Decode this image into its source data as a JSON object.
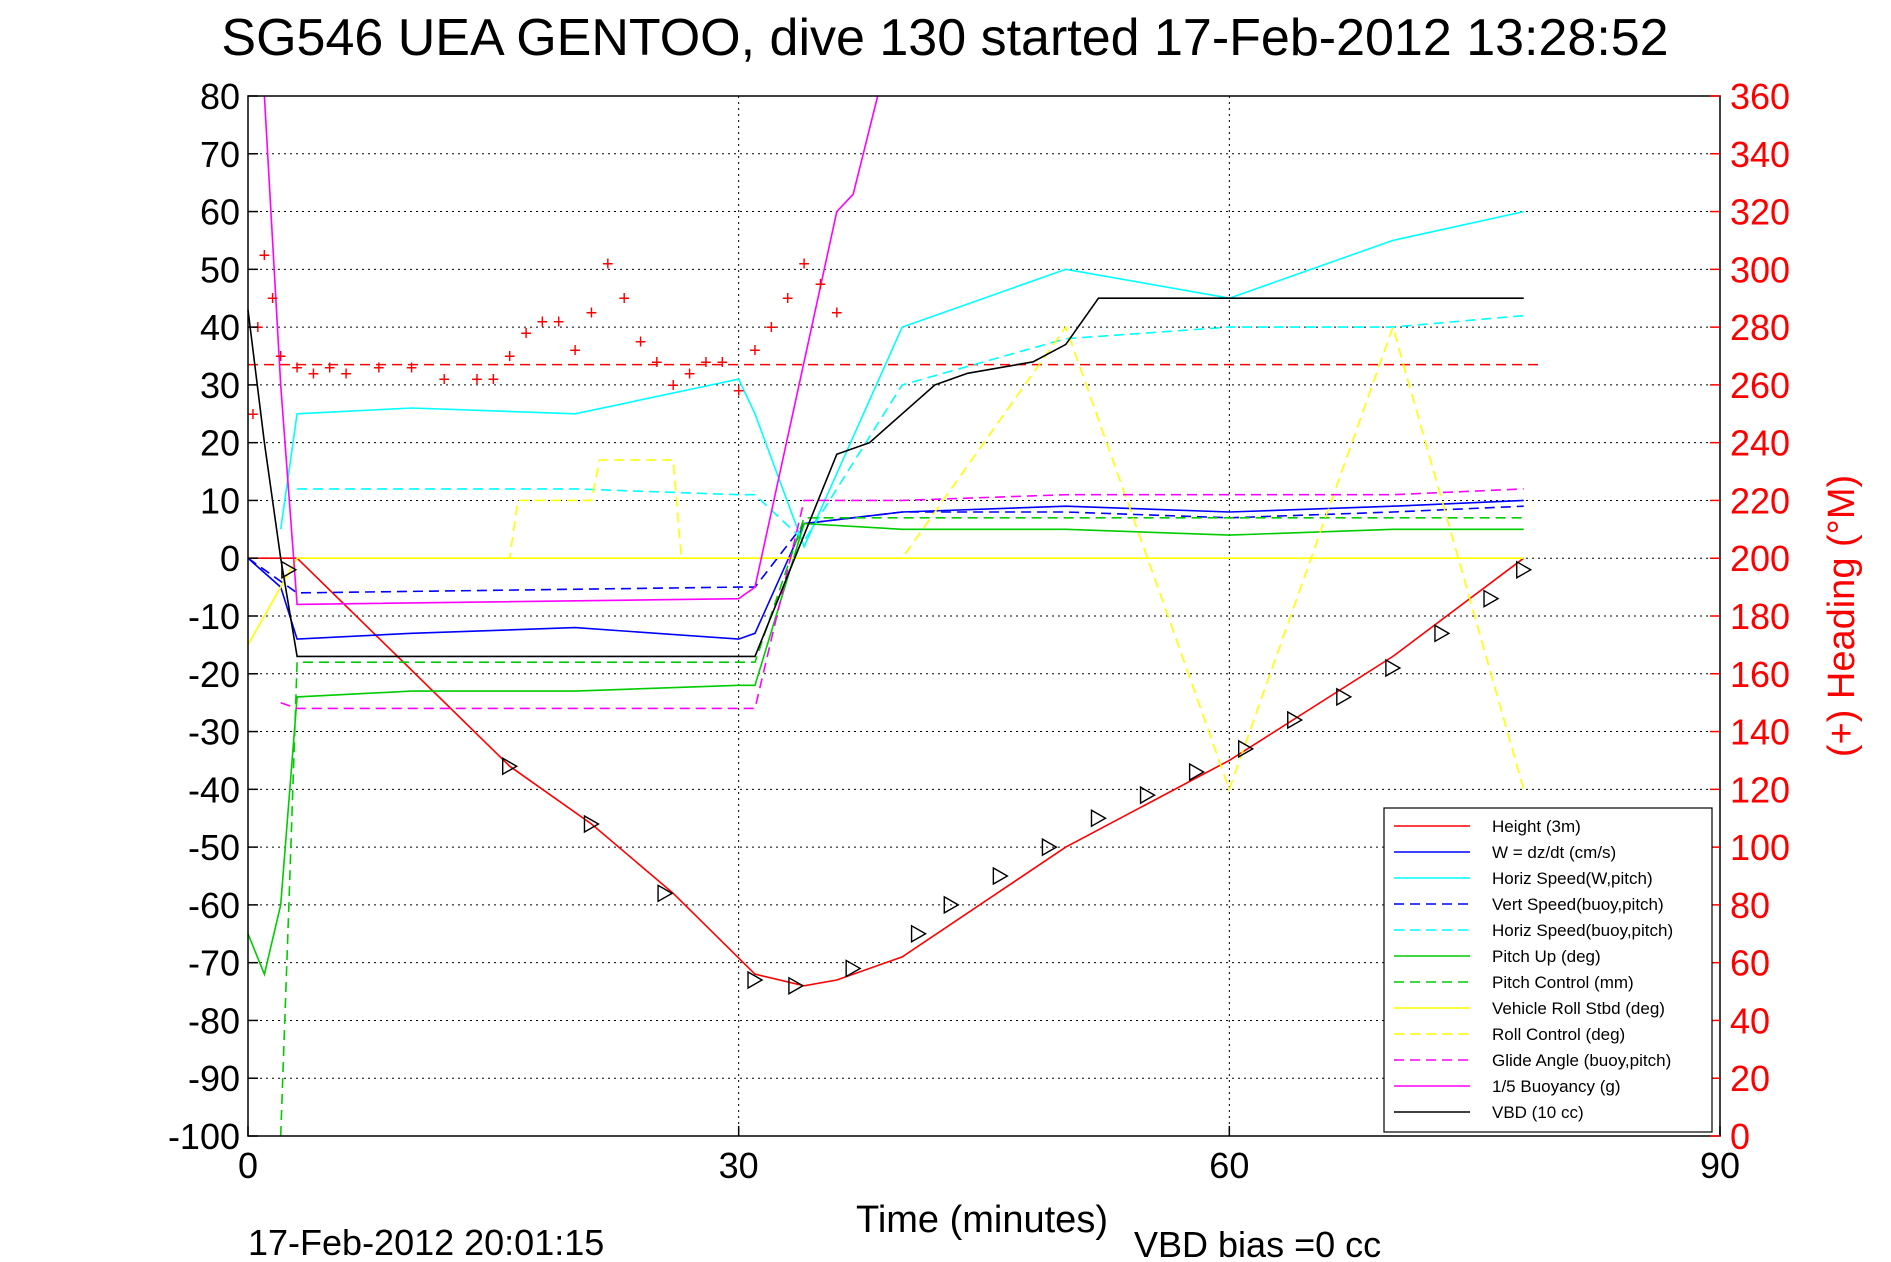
{
  "figure": {
    "title": "SG546 UEA GENTOO, dive 130 started 17-Feb-2012 13:28:52",
    "timestamp": "17-Feb-2012 20:01:15",
    "vbd_bias": "VBD bias =0 cc"
  },
  "chart_data": {
    "type": "line",
    "title": "SG546 UEA GENTOO, dive 130 started 17-Feb-2012 13:28:52",
    "xlabel": "Time (minutes)",
    "ylabel": "",
    "y2label": "(+) Heading (°M)",
    "xlim": [
      0,
      90
    ],
    "ylim": [
      -100,
      80
    ],
    "y2lim": [
      0,
      360
    ],
    "xticks": [
      0,
      30,
      60,
      90
    ],
    "yticks": [
      -100,
      -90,
      -80,
      -70,
      -60,
      -50,
      -40,
      -30,
      -20,
      -10,
      0,
      10,
      20,
      30,
      40,
      50,
      60,
      70,
      80
    ],
    "y2ticks": [
      0,
      20,
      40,
      60,
      80,
      100,
      120,
      140,
      160,
      180,
      200,
      220,
      240,
      260,
      280,
      300,
      320,
      340,
      360
    ],
    "grid": true,
    "legend_position": "bottom-right",
    "series": [
      {
        "name": "Height (3m)",
        "color": "#ff0000",
        "style": "solid",
        "x": [
          0,
          3,
          16,
          21,
          26,
          31,
          34,
          36,
          40,
          50,
          60,
          70,
          78
        ],
        "y": [
          0,
          0,
          -36,
          -46,
          -58,
          -72,
          -74,
          -73,
          -69,
          -50,
          -35,
          -17,
          0
        ]
      },
      {
        "name": "W = dz/dt (cm/s)",
        "color": "#0000ff",
        "style": "solid",
        "x": [
          0,
          2,
          3,
          10,
          20,
          30,
          31,
          34,
          40,
          50,
          60,
          70,
          78
        ],
        "y": [
          0,
          -5,
          -14,
          -13,
          -12,
          -14,
          -13,
          6,
          8,
          9,
          8,
          9,
          10
        ]
      },
      {
        "name": "Horiz Speed(W,pitch)",
        "color": "#00ffff",
        "style": "solid",
        "x": [
          2,
          3,
          10,
          20,
          30,
          31,
          34,
          40,
          50,
          60,
          70,
          78
        ],
        "y": [
          5,
          25,
          26,
          25,
          31,
          25,
          2,
          40,
          50,
          45,
          55,
          60
        ]
      },
      {
        "name": "Vert Speed(buoy,pitch)",
        "color": "#0000ff",
        "style": "dashed",
        "x": [
          0,
          3,
          30,
          31,
          34,
          40,
          50,
          60,
          70,
          78
        ],
        "y": [
          0,
          -6,
          -5,
          -5,
          6,
          8,
          8,
          7,
          8,
          9
        ]
      },
      {
        "name": "Horiz Speed(buoy,pitch)",
        "color": "#00ffff",
        "style": "dashed",
        "x": [
          3,
          10,
          20,
          30,
          31,
          34,
          40,
          50,
          60,
          70,
          78
        ],
        "y": [
          12,
          12,
          12,
          11,
          11,
          3,
          30,
          38,
          40,
          40,
          42
        ]
      },
      {
        "name": "Pitch Up (deg)",
        "color": "#00cc00",
        "style": "solid",
        "x": [
          0,
          1,
          2,
          3,
          10,
          20,
          30,
          31,
          34,
          40,
          50,
          60,
          70,
          78
        ],
        "y": [
          -65,
          -72,
          -60,
          -24,
          -23,
          -23,
          -22,
          -22,
          6,
          5,
          5,
          4,
          5,
          5
        ]
      },
      {
        "name": "Pitch Control (mm)",
        "color": "#00cc00",
        "style": "dashed",
        "x": [
          2,
          2.5,
          3,
          30,
          31,
          34,
          40,
          50,
          60,
          70,
          78
        ],
        "y": [
          -100,
          -60,
          -18,
          -18,
          -18,
          7,
          7,
          7,
          7,
          7,
          7
        ]
      },
      {
        "name": "Vehicle Roll Stbd (deg)",
        "color": "#ffff00",
        "style": "solid",
        "x": [
          0,
          3,
          10,
          20,
          30,
          34,
          40,
          50,
          60,
          70,
          78
        ],
        "y": [
          -15,
          0,
          0,
          0,
          0,
          0,
          0,
          0,
          0,
          0,
          0
        ]
      },
      {
        "name": "Roll Control (deg)",
        "color": "#ffff00",
        "style": "dashed",
        "x": [
          3,
          16,
          16.5,
          21,
          21.5,
          26,
          26.5,
          34,
          40,
          50,
          60,
          70,
          78
        ],
        "y": [
          0,
          0,
          10,
          10,
          17,
          17,
          0,
          0,
          0,
          40,
          -40,
          40,
          -40
        ]
      },
      {
        "name": "Glide Angle (buoy,pitch)",
        "color": "#ff00ff",
        "style": "dashed",
        "x": [
          2,
          3,
          30,
          31,
          34,
          40,
          50,
          60,
          70,
          78
        ],
        "y": [
          -25,
          -26,
          -26,
          -26,
          10,
          10,
          11,
          11,
          11,
          12
        ]
      },
      {
        "name": "1/5 Buoyancy (g)",
        "color": "#ff00ff",
        "style": "solid",
        "x": [
          1,
          2,
          3,
          30,
          31,
          36,
          37,
          38.5
        ],
        "y": [
          80,
          30,
          -8,
          -7,
          -5,
          60,
          63,
          80
        ]
      },
      {
        "name": "VBD (10 cc)",
        "color": "#000000",
        "style": "solid",
        "x": [
          0,
          1,
          2,
          3,
          30,
          31,
          36,
          38,
          42,
          44,
          48,
          50,
          52,
          60,
          70,
          78
        ],
        "y": [
          43,
          20,
          0,
          -17,
          -17,
          -17,
          18,
          20,
          30,
          32,
          34,
          37,
          45,
          45,
          45,
          45
        ]
      }
    ],
    "reference_lines": [
      {
        "axis": "y2",
        "value": 267,
        "color": "#ff0000",
        "style": "dashed",
        "x": [
          0,
          79
        ]
      }
    ],
    "heading": {
      "axis": "y2",
      "marker": "+",
      "color": "#ff0000",
      "x": [
        0.3,
        0.6,
        1,
        1.5,
        2,
        3,
        4,
        5,
        6,
        8,
        10,
        12,
        14,
        15,
        16,
        17,
        18,
        19,
        20,
        21,
        22,
        23,
        24,
        25,
        26,
        27,
        28,
        29,
        30,
        31,
        32,
        33,
        34,
        35,
        36
      ],
      "y": [
        250,
        280,
        305,
        290,
        270,
        266,
        264,
        266,
        264,
        266,
        266,
        262,
        262,
        262,
        270,
        278,
        282,
        282,
        272,
        285,
        302,
        290,
        275,
        268,
        260,
        264,
        268,
        268,
        258,
        272,
        280,
        290,
        302,
        295,
        285
      ]
    },
    "depth_markers": {
      "marker": "triangle",
      "color": "#000000",
      "x": [
        2.5,
        16,
        21,
        25.5,
        31,
        33.5,
        37,
        41,
        43,
        46,
        49,
        52,
        55,
        58,
        61,
        64,
        67,
        70,
        73,
        76,
        78
      ],
      "y": [
        -2,
        -36,
        -46,
        -58,
        -73,
        -74,
        -71,
        -65,
        -60,
        -55,
        -50,
        -45,
        -41,
        -37,
        -33,
        -28,
        -24,
        -19,
        -13,
        -7,
        -2
      ]
    }
  }
}
